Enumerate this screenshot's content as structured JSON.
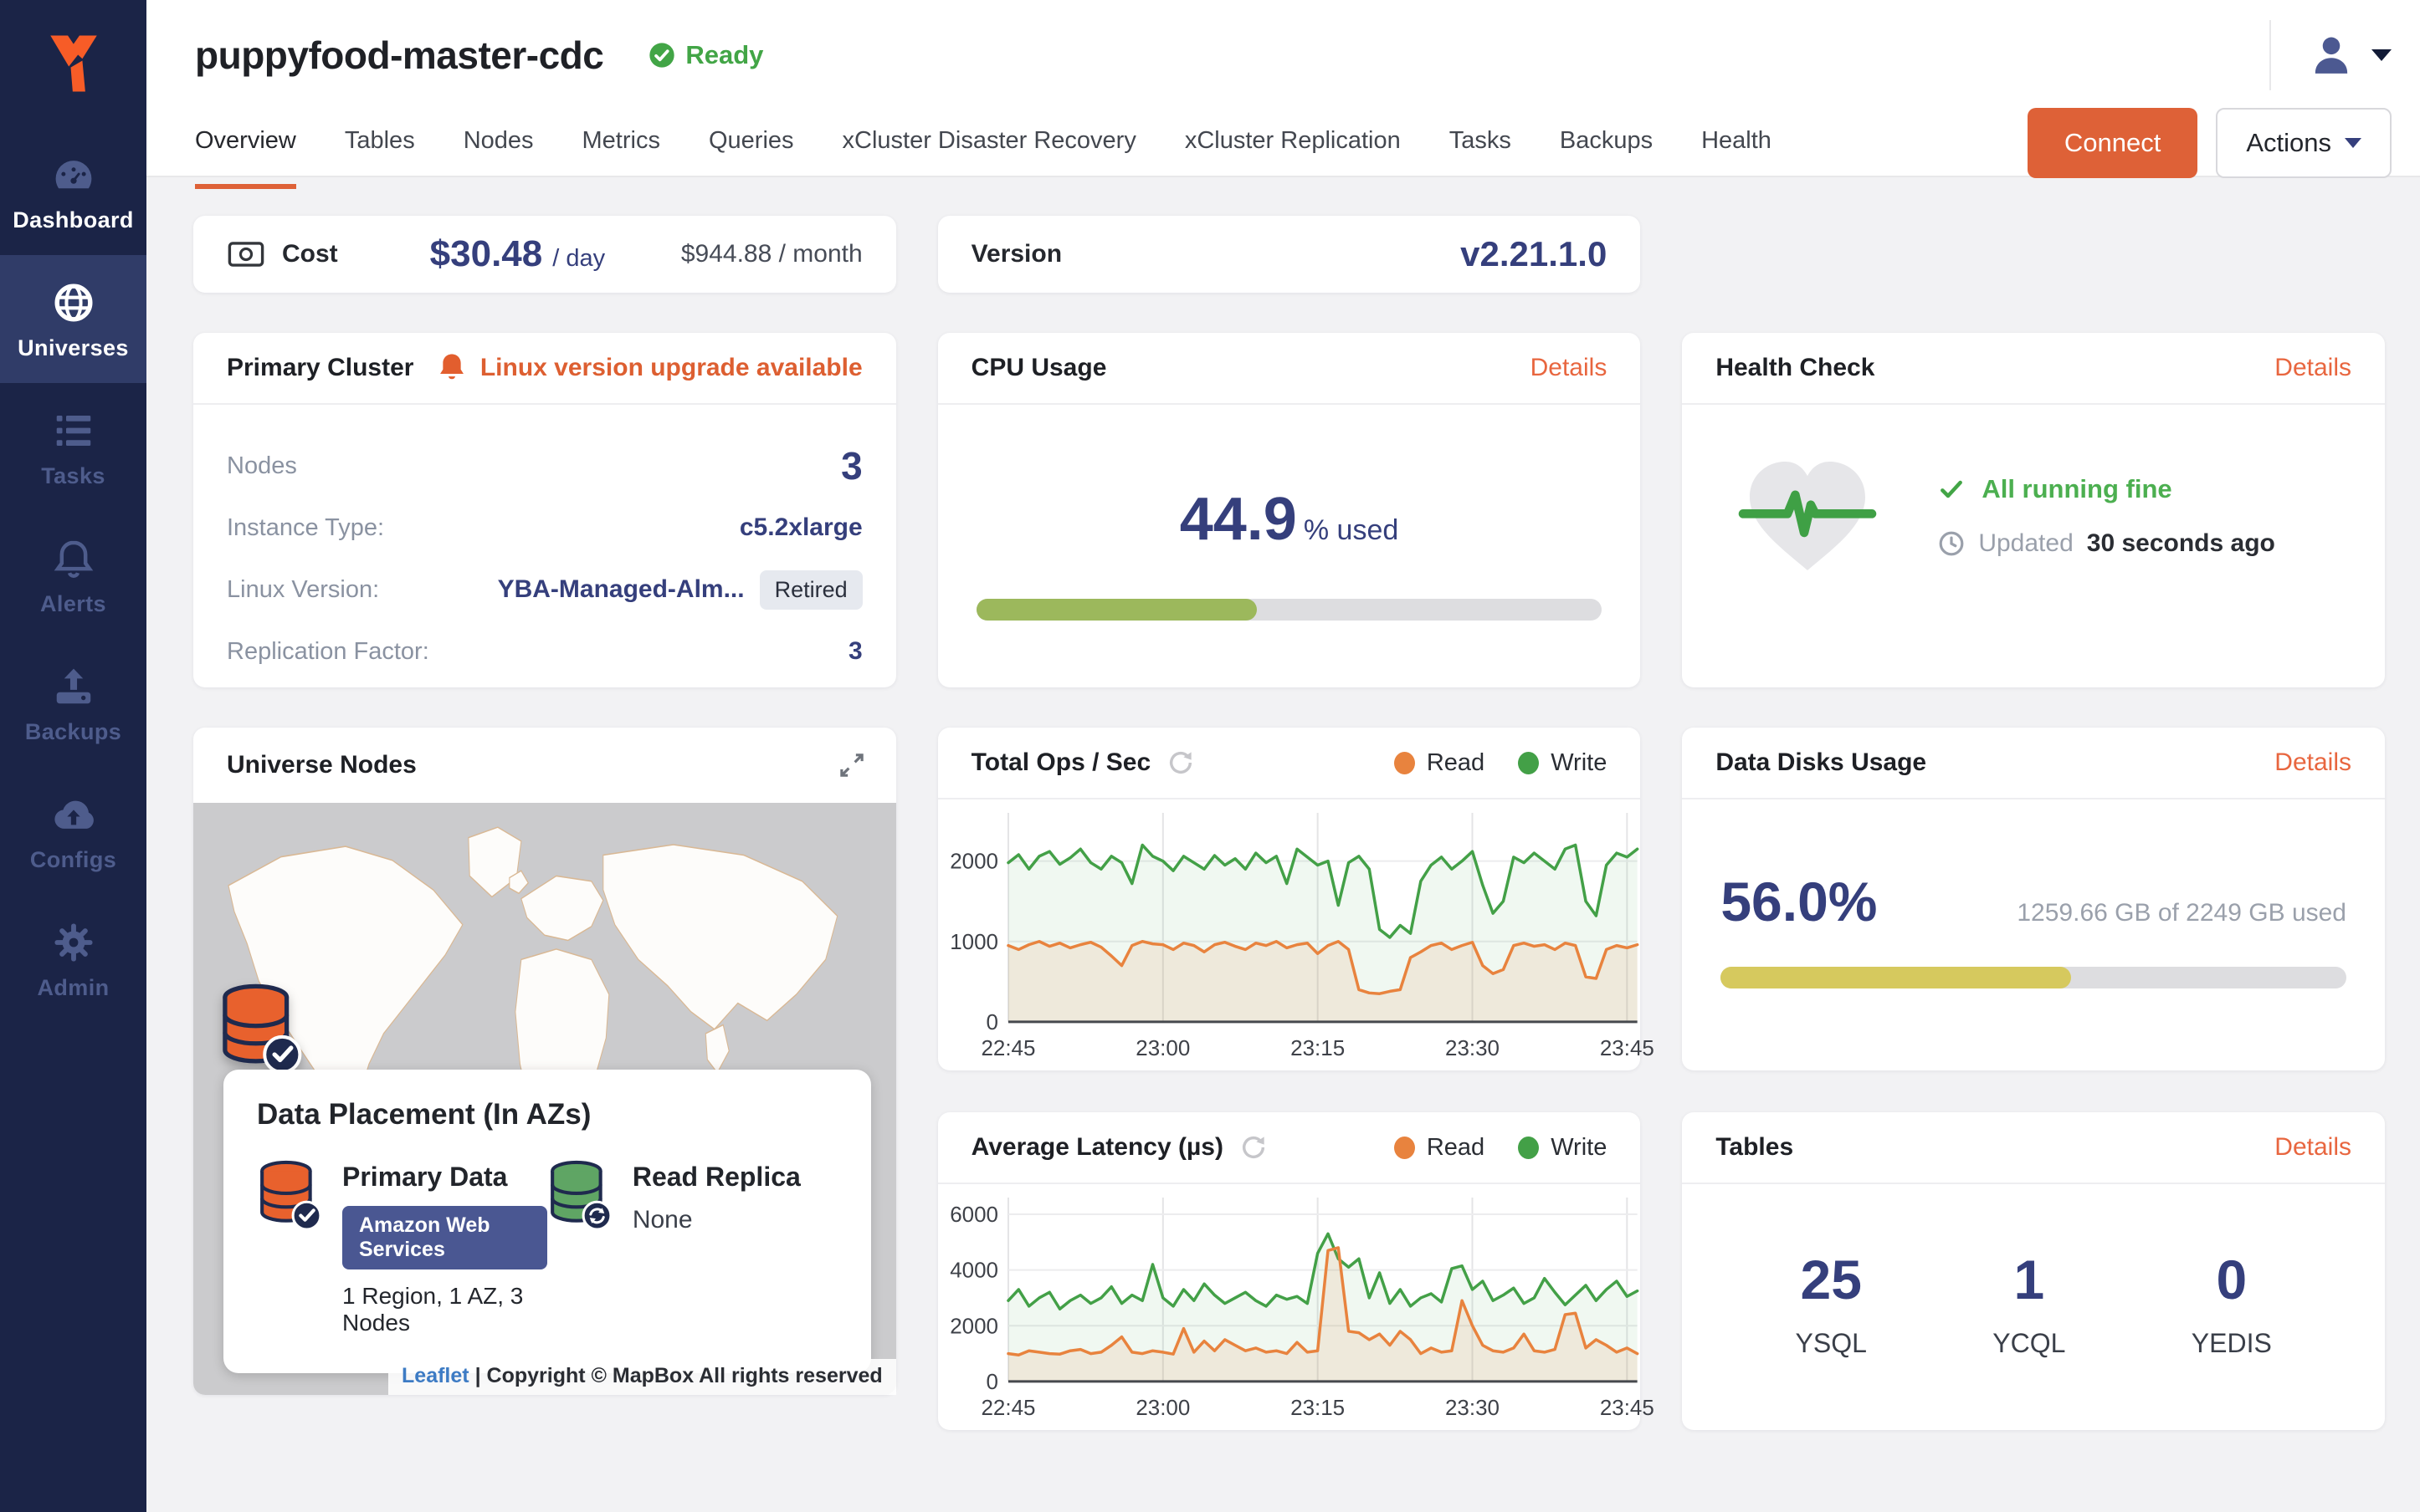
{
  "colors": {
    "accent_orange": "#DE6137",
    "link_orange": "#E8663F",
    "navy": "#353F7C",
    "status_green": "#42A546",
    "chart_green": "#43A047",
    "chart_orange": "#E8833E",
    "cpu_bar_green": "#9CB85C",
    "disk_bar_yellow": "#D6C95E",
    "sidebar_bg": "#1B2447",
    "sidebar_active_bg": "#303C68",
    "aws_pill": "#4A5792"
  },
  "sidebar": {
    "items": [
      {
        "label": "Dashboard",
        "icon": "dashboard-icon",
        "active": false,
        "bright": true
      },
      {
        "label": "Universes",
        "icon": "globe-icon",
        "active": true,
        "bright": false
      },
      {
        "label": "Tasks",
        "icon": "tasks-icon",
        "active": false,
        "bright": false
      },
      {
        "label": "Alerts",
        "icon": "bell-icon",
        "active": false,
        "bright": false
      },
      {
        "label": "Backups",
        "icon": "backup-icon",
        "active": false,
        "bright": false
      },
      {
        "label": "Configs",
        "icon": "cloud-upload-icon",
        "active": false,
        "bright": false
      },
      {
        "label": "Admin",
        "icon": "gear-icon",
        "active": false,
        "bright": false
      }
    ]
  },
  "header": {
    "title": "puppyfood-master-cdc",
    "status": "Ready",
    "status_icon": "check-circle-icon",
    "tabs": [
      "Overview",
      "Tables",
      "Nodes",
      "Metrics",
      "Queries",
      "xCluster Disaster Recovery",
      "xCluster Replication",
      "Tasks",
      "Backups",
      "Health"
    ],
    "active_tab": "Overview",
    "connect": "Connect",
    "actions": "Actions",
    "user_icon": "person-icon"
  },
  "cost_card": {
    "label": "Cost",
    "icon": "banknote-icon",
    "daily": "$30.48",
    "daily_unit": "/ day",
    "monthly": "$944.88 / month"
  },
  "version_card": {
    "label": "Version",
    "value": "v2.21.1.0"
  },
  "primary_cluster": {
    "title": "Primary Cluster",
    "alert_icon": "bell-icon",
    "alert": "Linux version upgrade available",
    "rows": [
      {
        "label": "Nodes",
        "value": "3",
        "big": true,
        "badge": null
      },
      {
        "label": "Instance Type:",
        "value": "c5.2xlarge",
        "big": false,
        "badge": null
      },
      {
        "label": "Linux Version:",
        "value": "YBA-Managed-Alm...",
        "big": false,
        "badge": "Retired"
      },
      {
        "label": "Replication Factor:",
        "value": "3",
        "big": false,
        "badge": null
      }
    ]
  },
  "cpu_card": {
    "title": "CPU Usage",
    "details": "Details",
    "value": "44.9",
    "suffix": "% used",
    "percent": 44.9
  },
  "health_card": {
    "title": "Health Check",
    "details": "Details",
    "icon": "heart-pulse-icon",
    "status": "All running fine",
    "updated_label": "Updated",
    "updated_value": "30 seconds ago"
  },
  "nodes_card": {
    "title": "Universe Nodes",
    "expand_icon": "expand-icon",
    "marker_icon": "database-check-icon",
    "placement_title": "Data Placement (In AZs)",
    "primary": {
      "icon": "database-check-icon",
      "title": "Primary Data",
      "provider": "Amazon Web Services",
      "summary": "1 Region, 1 AZ, 3 Nodes"
    },
    "replica": {
      "icon": "database-sync-icon",
      "title": "Read Replica",
      "value": "None"
    },
    "attribution_link": "Leaflet",
    "attribution_text": "| Copyright © MapBox All rights reserved"
  },
  "disks_card": {
    "title": "Data Disks Usage",
    "details": "Details",
    "value": "56.0%",
    "usage": "1259.66 GB of 2249 GB used",
    "percent": 56
  },
  "tables_card": {
    "title": "Tables",
    "details": "Details",
    "stats": [
      {
        "value": "25",
        "label": "YSQL"
      },
      {
        "value": "1",
        "label": "YCQL"
      },
      {
        "value": "0",
        "label": "YEDIS"
      }
    ]
  },
  "chart_data": [
    {
      "id": "total_ops",
      "type": "line",
      "title": "Total Ops / Sec",
      "refresh_icon": "refresh-icon",
      "legend": [
        {
          "name": "Read",
          "color": "#E8833E"
        },
        {
          "name": "Write",
          "color": "#43A047"
        }
      ],
      "x_ticks": [
        "22:45",
        "23:00",
        "23:15",
        "23:30",
        "23:45"
      ],
      "points_per_tick": 15,
      "y_ticks": [
        0,
        1000,
        2000
      ],
      "ylim": [
        0,
        2600
      ],
      "grid": true,
      "legend_position": "top-right",
      "series": [
        {
          "name": "Write",
          "color": "#43A047",
          "fill": "rgba(67,160,71,0.08)",
          "values": [
            1980,
            2080,
            1900,
            2060,
            2120,
            1960,
            2040,
            2150,
            1980,
            1900,
            2060,
            1980,
            1720,
            2200,
            2060,
            2000,
            1880,
            2060,
            1980,
            1900,
            2070,
            1950,
            2030,
            1900,
            2100,
            1980,
            2060,
            1720,
            2150,
            2050,
            1950,
            2000,
            1450,
            1980,
            2060,
            1900,
            1150,
            1050,
            1200,
            1100,
            1750,
            1950,
            2050,
            1900,
            2000,
            2120,
            1700,
            1350,
            1500,
            2050,
            1980,
            2100,
            2000,
            1900,
            2150,
            2200,
            1500,
            1320,
            1950,
            2100,
            2050,
            2150
          ]
        },
        {
          "name": "Read",
          "color": "#E8833E",
          "fill": "rgba(232,131,62,0.12)",
          "values": [
            950,
            900,
            960,
            1000,
            940,
            980,
            920,
            960,
            990,
            930,
            820,
            700,
            950,
            1000,
            970,
            960,
            900,
            980,
            950,
            870,
            960,
            990,
            940,
            900,
            980,
            950,
            1000,
            920,
            960,
            980,
            850,
            950,
            1000,
            900,
            400,
            360,
            350,
            380,
            400,
            800,
            870,
            950,
            980,
            900,
            950,
            990,
            700,
            600,
            650,
            950,
            980,
            940,
            960,
            900,
            980,
            950,
            560,
            540,
            900,
            950,
            920,
            960
          ]
        }
      ]
    },
    {
      "id": "avg_latency",
      "type": "line",
      "title": "Average Latency (µs)",
      "refresh_icon": "refresh-icon",
      "legend": [
        {
          "name": "Read",
          "color": "#E8833E"
        },
        {
          "name": "Write",
          "color": "#43A047"
        }
      ],
      "x_ticks": [
        "22:45",
        "23:00",
        "23:15",
        "23:30",
        "23:45"
      ],
      "points_per_tick": 15,
      "y_ticks": [
        0,
        2000,
        4000,
        6000
      ],
      "ylim": [
        0,
        6600
      ],
      "grid": true,
      "legend_position": "top-right",
      "series": [
        {
          "name": "Write",
          "color": "#43A047",
          "fill": "rgba(67,160,71,0.08)",
          "values": [
            2900,
            3300,
            2700,
            3000,
            3200,
            2600,
            2900,
            3100,
            2800,
            3000,
            3400,
            2800,
            3100,
            2900,
            4200,
            3000,
            2700,
            3300,
            2900,
            3500,
            3100,
            2800,
            3000,
            3200,
            2900,
            2700,
            3100,
            2950,
            3050,
            2800,
            4600,
            5300,
            4400,
            4100,
            4400,
            3000,
            3900,
            2800,
            3300,
            2700,
            3000,
            3150,
            2850,
            4050,
            4150,
            3300,
            3600,
            2900,
            3100,
            3350,
            2800,
            3000,
            3700,
            3200,
            2750,
            3100,
            3450,
            2900,
            3300,
            3600,
            3050,
            3250
          ]
        },
        {
          "name": "Read",
          "color": "#E8833E",
          "fill": "rgba(232,131,62,0.12)",
          "values": [
            1000,
            950,
            1100,
            1050,
            1000,
            980,
            1100,
            1150,
            1000,
            1050,
            1300,
            1600,
            1050,
            1000,
            1100,
            1050,
            980,
            1900,
            1050,
            1450,
            1100,
            1500,
            1300,
            1100,
            1200,
            1050,
            1100,
            1000,
            1400,
            1050,
            1100,
            4700,
            4800,
            1800,
            1750,
            1500,
            1700,
            1300,
            1800,
            1500,
            1000,
            1200,
            1050,
            1100,
            2900,
            2000,
            1300,
            1100,
            1050,
            1200,
            1700,
            1100,
            1050,
            1150,
            2400,
            2450,
            1200,
            1500,
            1300,
            1050,
            1200,
            1000
          ]
        }
      ]
    }
  ]
}
